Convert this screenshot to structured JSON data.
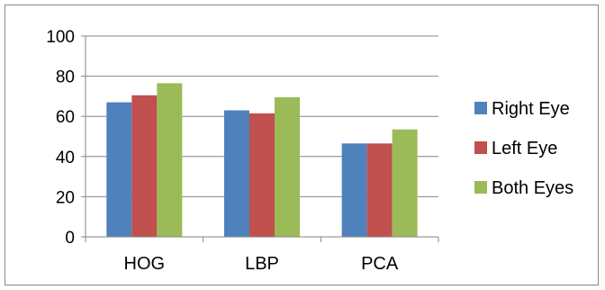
{
  "chart_data": {
    "type": "bar",
    "categories": [
      "HOG",
      "LBP",
      "PCA"
    ],
    "series": [
      {
        "name": "Right Eye",
        "values": [
          67,
          63,
          46.5
        ],
        "color": "#4F81BD"
      },
      {
        "name": "Left Eye",
        "values": [
          70.5,
          61.5,
          46.5
        ],
        "color": "#C0504D"
      },
      {
        "name": "Both Eyes",
        "values": [
          76.5,
          69.5,
          53.5
        ],
        "color": "#9BBB59"
      }
    ],
    "title": "",
    "xlabel": "",
    "ylabel": "",
    "ylim": [
      0,
      100
    ],
    "yticks": [
      0,
      20,
      40,
      60,
      80,
      100
    ],
    "grid": "horizontal",
    "legend_position": "right"
  }
}
